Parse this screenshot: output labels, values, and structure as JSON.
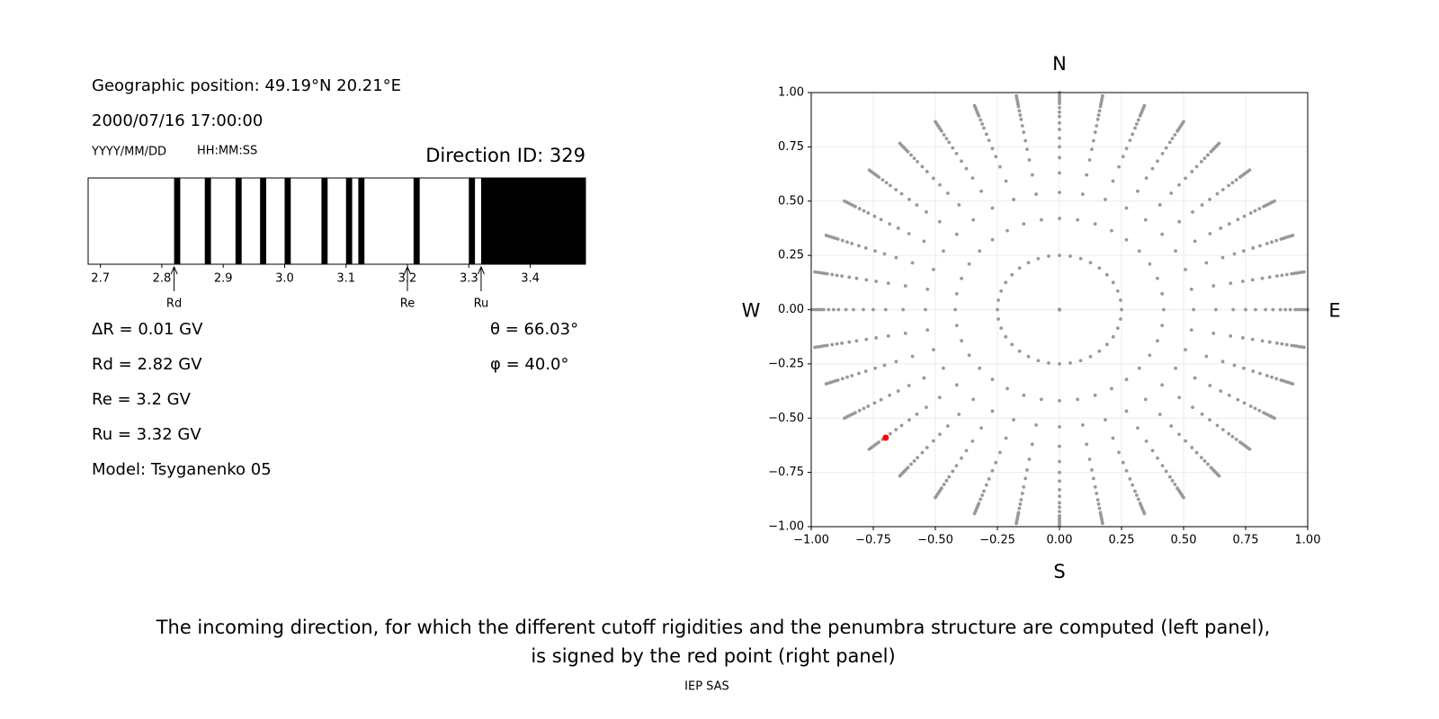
{
  "info": {
    "position": "Geographic position: 49.19°N 20.21°E",
    "datetime": "2000/07/16 17:00:00",
    "date_format": "YYYY/MM/DD",
    "time_format": "HH:MM:SS",
    "lines": [
      "ΔR = 0.01 GV",
      "Rd = 2.82 GV",
      "Re = 3.2 GV",
      "Ru = 3.32 GV",
      "Model: Tsyganenko 05"
    ],
    "angles": [
      "θ = 66.03°",
      "φ = 40.0°"
    ]
  },
  "caption": [
    "The incoming direction, for which the different cutoff rigidities and the penumbra structure are computed (left panel),",
    "is signed by the red point (right panel)"
  ],
  "footer": "IEP SAS",
  "chart_data": [
    {
      "type": "penumbra",
      "title": "Direction ID: 329",
      "color": "#000000",
      "xlim": [
        2.68,
        3.49
      ],
      "xticks": [
        2.7,
        2.8,
        2.9,
        {
          "value": 3,
          "label": "3.0"
        },
        3.1,
        3.2,
        3.3,
        3.4
      ],
      "bands": [
        [
          2.82,
          2.83
        ],
        [
          2.87,
          2.88
        ],
        [
          2.92,
          2.93
        ],
        [
          2.96,
          2.97
        ],
        [
          3.0,
          3.01
        ],
        [
          3.06,
          3.07
        ],
        [
          3.1,
          3.11
        ],
        [
          3.12,
          3.13
        ],
        [
          3.21,
          3.22
        ],
        [
          3.3,
          3.31
        ],
        [
          3.32,
          3.49
        ]
      ],
      "markers": [
        {
          "label": "Rd",
          "value": 2.82
        },
        {
          "label": "Re",
          "value": 3.2
        },
        {
          "label": "Ru",
          "value": 3.32
        }
      ]
    },
    {
      "type": "scatter",
      "grid": true,
      "point_color": "#999999",
      "xlim": [
        -1,
        1
      ],
      "ylim": [
        -1,
        1
      ],
      "xticks": [
        {
          "value": -1,
          "label": "−1.00"
        },
        {
          "value": -0.75,
          "label": "−0.75"
        },
        {
          "value": -0.5,
          "label": "−0.50"
        },
        {
          "value": -0.25,
          "label": "−0.25"
        },
        {
          "value": 0,
          "label": "0.00"
        },
        {
          "value": 0.25,
          "label": "0.25"
        },
        {
          "value": 0.5,
          "label": "0.50"
        },
        {
          "value": 0.75,
          "label": "0.75"
        },
        {
          "value": 1,
          "label": "1.00"
        }
      ],
      "yticks": [
        {
          "value": -1,
          "label": "−1.00"
        },
        {
          "value": -0.75,
          "label": "−0.75"
        },
        {
          "value": -0.5,
          "label": "−0.50"
        },
        {
          "value": -0.25,
          "label": "−0.25"
        },
        {
          "value": 0,
          "label": "0.00"
        },
        {
          "value": 0.25,
          "label": "0.25"
        },
        {
          "value": 0.5,
          "label": "0.50"
        },
        {
          "value": 0.75,
          "label": "0.75"
        },
        {
          "value": 1,
          "label": "1.00"
        }
      ],
      "points": {
        "azimuths_deg": [
          0,
          10,
          20,
          30,
          40,
          50,
          60,
          70,
          80,
          90,
          100,
          110,
          120,
          130,
          140,
          150,
          160,
          170,
          180,
          190,
          200,
          210,
          220,
          230,
          240,
          250,
          260,
          270,
          280,
          290,
          300,
          310,
          320,
          330,
          340,
          350
        ],
        "radii": [
          0,
          0.25,
          0.42,
          0.54,
          0.63,
          0.7,
          0.75,
          0.79,
          0.83,
          0.86,
          0.89,
          0.91,
          0.93,
          0.95,
          0.96,
          0.97,
          0.98,
          0.99,
          1.0
        ]
      },
      "highlight": {
        "x": -0.7,
        "y": -0.59,
        "color": "#ff0000"
      },
      "labels": {
        "top": "N",
        "bottom": "S",
        "left": "W",
        "right": "E"
      }
    }
  ]
}
